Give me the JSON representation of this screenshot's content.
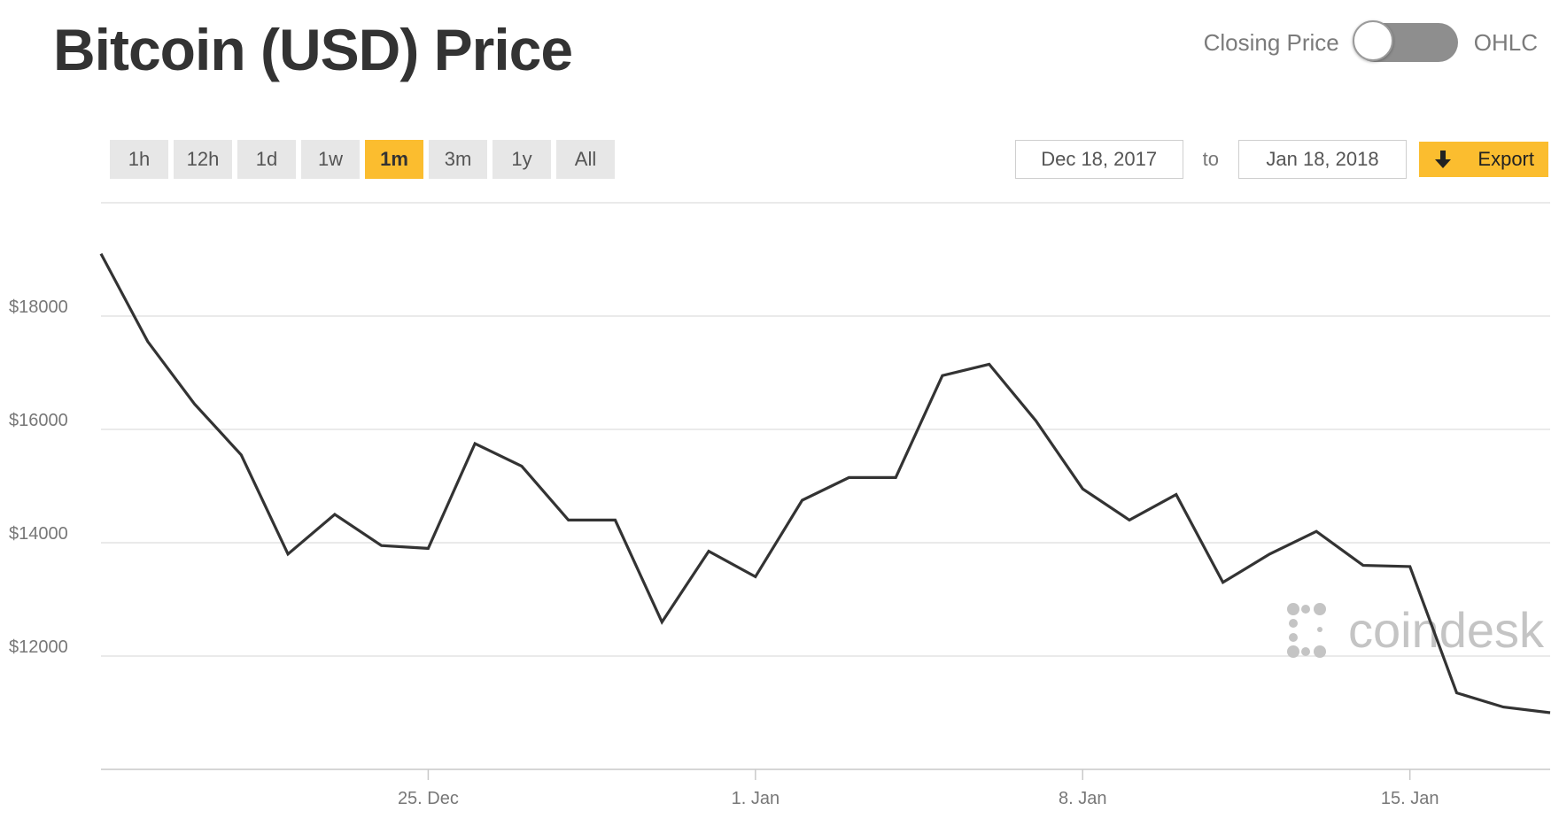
{
  "header": {
    "title": "Bitcoin (USD) Price",
    "toggle_left_label": "Closing Price",
    "toggle_right_label": "OHLC",
    "toggle_state": "Closing Price"
  },
  "ranges": [
    "1h",
    "12h",
    "1d",
    "1w",
    "1m",
    "3m",
    "1y",
    "All"
  ],
  "active_range": "1m",
  "date_range": {
    "from": "Dec 18, 2017",
    "separator": "to",
    "to": "Jan 18, 2018"
  },
  "export": {
    "label": "Export",
    "icon": "download-arrow-icon"
  },
  "watermark": {
    "text": "coindesk",
    "icon": "coindesk-logo-icon"
  },
  "colors": {
    "accent": "#fbbd2f",
    "line": "#333333",
    "grid": "#e3e3e3"
  },
  "chart_data": {
    "type": "line",
    "title": "Bitcoin (USD) Price",
    "xlabel": "",
    "ylabel": "",
    "x": [
      "2017-12-18",
      "2017-12-19",
      "2017-12-20",
      "2017-12-21",
      "2017-12-22",
      "2017-12-23",
      "2017-12-24",
      "2017-12-25",
      "2017-12-26",
      "2017-12-27",
      "2017-12-28",
      "2017-12-29",
      "2017-12-30",
      "2017-12-31",
      "2018-01-01",
      "2018-01-02",
      "2018-01-03",
      "2018-01-04",
      "2018-01-05",
      "2018-01-06",
      "2018-01-07",
      "2018-01-08",
      "2018-01-09",
      "2018-01-10",
      "2018-01-11",
      "2018-01-12",
      "2018-01-13",
      "2018-01-14",
      "2018-01-15",
      "2018-01-16",
      "2018-01-17",
      "2018-01-18"
    ],
    "series": [
      {
        "values": [
          19100,
          17550,
          16450,
          15550,
          13800,
          14500,
          13950,
          13900,
          15750,
          15350,
          14400,
          14400,
          12600,
          13850,
          13400,
          14750,
          15150,
          15150,
          16950,
          17150,
          16150,
          14950,
          14400,
          14850,
          13300,
          13800,
          14200,
          13600,
          13580,
          11350,
          11100,
          11000
        ]
      }
    ],
    "x_ticks": [
      {
        "date": "2017-12-25",
        "label": "25. Dec"
      },
      {
        "date": "2018-01-01",
        "label": "1. Jan"
      },
      {
        "date": "2018-01-08",
        "label": "8. Jan"
      },
      {
        "date": "2018-01-15",
        "label": "15. Jan"
      }
    ],
    "y_ticks": [
      {
        "value": 12000,
        "label": "$12000"
      },
      {
        "value": 14000,
        "label": "$14000"
      },
      {
        "value": 16000,
        "label": "$16000"
      },
      {
        "value": 18000,
        "label": "$18000"
      }
    ],
    "ylim": [
      10000,
      20000
    ],
    "grid": true,
    "legend": false
  }
}
